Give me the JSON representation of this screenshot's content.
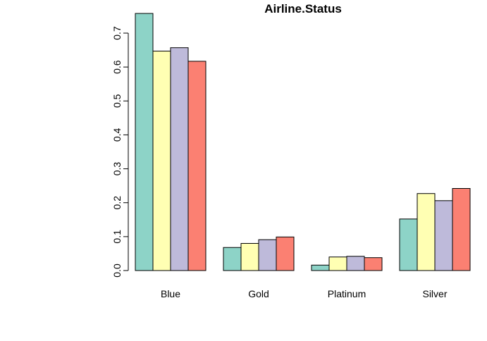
{
  "chart_data": {
    "type": "bar",
    "title": "Airline.Status",
    "xlabel": "",
    "ylabel": "",
    "categories": [
      "Blue",
      "Gold",
      "Platinum",
      "Silver"
    ],
    "ylim": [
      0,
      0.75
    ],
    "yticks": [
      "0.0",
      "0.1",
      "0.2",
      "0.3",
      "0.4",
      "0.5",
      "0.6",
      "0.7"
    ],
    "grid": false,
    "legend": "none",
    "series": [
      {
        "color": "#8DD3C7",
        "values": [
          0.758,
          0.068,
          0.016,
          0.152
        ]
      },
      {
        "color": "#FFFFB3",
        "values": [
          0.647,
          0.08,
          0.04,
          0.227
        ]
      },
      {
        "color": "#BEBADA",
        "values": [
          0.657,
          0.091,
          0.042,
          0.206
        ]
      },
      {
        "color": "#FB8072",
        "values": [
          0.617,
          0.099,
          0.038,
          0.242
        ]
      }
    ]
  }
}
